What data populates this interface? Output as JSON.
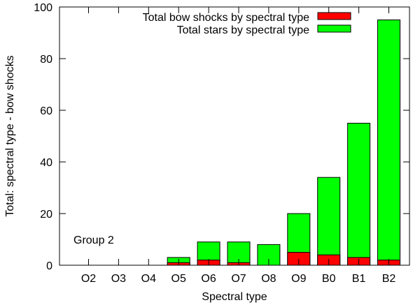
{
  "chart_data": {
    "type": "bar",
    "stacked": false,
    "overlapping": true,
    "xlabel": "Spectral type",
    "ylabel": "Total: spectral type - bow shocks",
    "ylim": [
      0,
      100
    ],
    "yticks": [
      0,
      20,
      40,
      60,
      80,
      100
    ],
    "categories": [
      "O2",
      "O3",
      "O4",
      "O5",
      "O6",
      "O7",
      "O8",
      "O9",
      "B0",
      "B1",
      "B2"
    ],
    "series": [
      {
        "name": "Total stars by spectral type",
        "color": "#00ff00",
        "values": [
          0,
          0,
          0,
          3,
          9,
          9,
          8,
          20,
          34,
          55,
          95
        ]
      },
      {
        "name": "Total bow shocks by spectral type",
        "color": "#ff0000",
        "values": [
          0,
          0,
          0,
          1,
          2,
          1,
          0,
          5,
          4,
          3,
          2
        ]
      }
    ],
    "legend": {
      "position": "top-right",
      "entries": [
        {
          "label": "Total bow shocks by spectral type",
          "color": "#ff0000"
        },
        {
          "label": "Total stars by spectral type",
          "color": "#00ff00"
        }
      ]
    },
    "annotation": "Group 2",
    "grid": false
  }
}
